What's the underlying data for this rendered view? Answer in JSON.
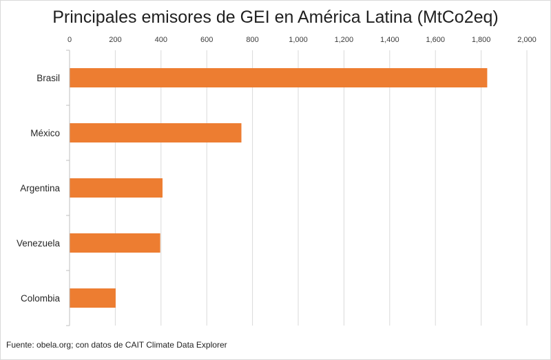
{
  "chart_data": {
    "type": "bar",
    "orientation": "horizontal",
    "title": "Principales emisores de GEI en América Latina (MtCo2eq)",
    "categories": [
      "Brasil",
      "México",
      "Argentina",
      "Venezuela",
      "Colombia"
    ],
    "values": [
      1825,
      750,
      405,
      395,
      200
    ],
    "xlim": [
      0,
      2000
    ],
    "xticks": [
      0,
      200,
      400,
      600,
      800,
      1000,
      1200,
      1400,
      1600,
      1800,
      2000
    ],
    "xtick_labels": [
      "0",
      "200",
      "400",
      "600",
      "800",
      "1,000",
      "1,200",
      "1,400",
      "1,600",
      "1,800",
      "2,000"
    ],
    "axis_position": "top",
    "grid": true,
    "legend": "none",
    "bar_color": "#ED7D31",
    "grid_color": "#d9d9d9"
  },
  "footnote": "Fuente: obela.org; con datos de CAIT Climate Data Explorer"
}
